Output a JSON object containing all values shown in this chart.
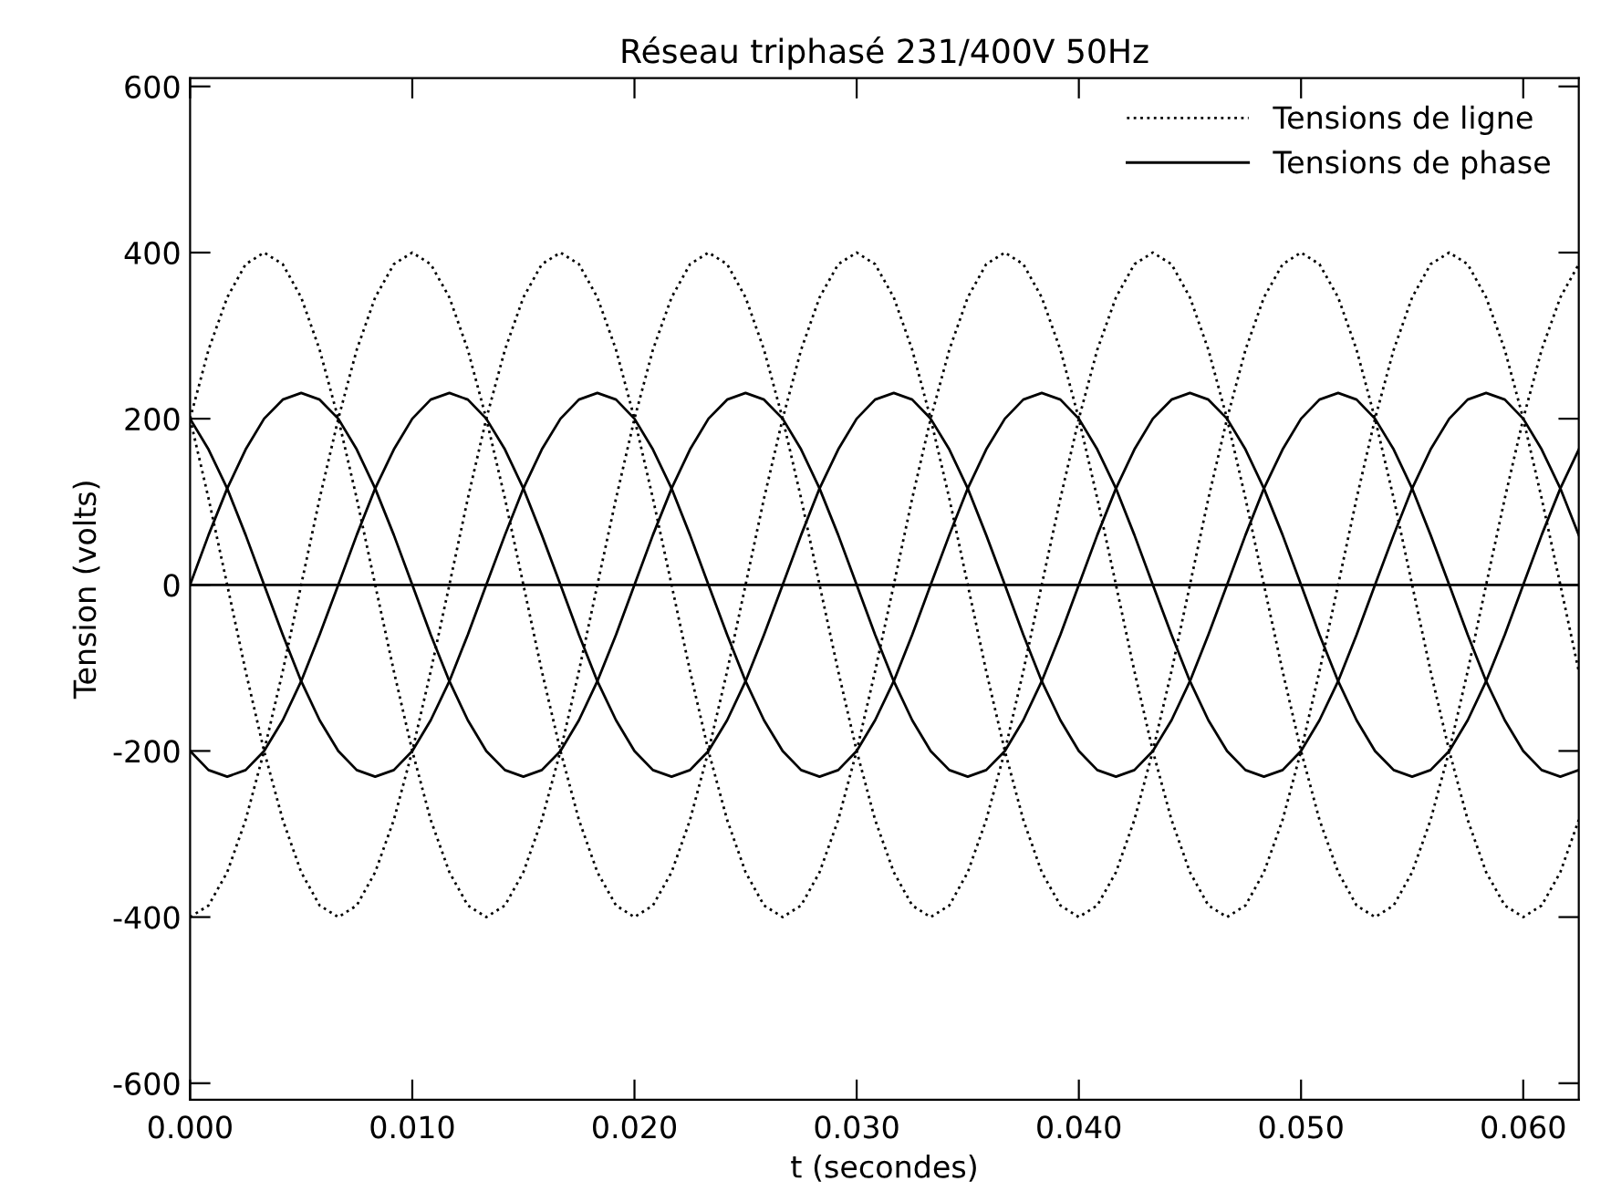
{
  "chart_data": {
    "type": "line",
    "title": "Réseau triphasé 231/400V 50Hz",
    "xlabel": "t (secondes)",
    "ylabel": "Tension (volts)",
    "x": [
      0,
      0.00083,
      0.00167,
      0.0025,
      0.00333,
      0.00417,
      0.005,
      0.00583,
      0.00667,
      0.0075,
      0.00833,
      0.00917,
      0.01,
      0.01083,
      0.01167,
      0.0125,
      0.01333,
      0.01417,
      0.015,
      0.01583,
      0.01667,
      0.0175,
      0.01833,
      0.01917,
      0.02,
      0.02083,
      0.02167,
      0.0225,
      0.02333,
      0.02417,
      0.025,
      0.02583,
      0.02667,
      0.0275,
      0.02833,
      0.02917,
      0.03,
      0.03083,
      0.03167,
      0.0325,
      0.03333,
      0.03417,
      0.035,
      0.03583,
      0.03667,
      0.0375,
      0.03833,
      0.03917,
      0.04,
      0.04083,
      0.04167,
      0.0425,
      0.04333,
      0.04417,
      0.045,
      0.04583,
      0.04667,
      0.0475,
      0.04833,
      0.04917,
      0.05,
      0.05083,
      0.05167,
      0.0525,
      0.05333,
      0.05417,
      0.055,
      0.05583,
      0.05667,
      0.0575,
      0.05833,
      0.05917,
      0.06,
      0.06083,
      0.06167,
      0.0625
    ],
    "series": [
      {
        "name": "Tensions de ligne",
        "color": "#000000",
        "line_style": "dotted",
        "values": [
          200,
          283,
          346,
          386,
          400,
          386,
          346,
          283,
          200,
          104,
          0,
          -104,
          -200,
          -283,
          -346,
          -386,
          -400,
          -386,
          -346,
          -283,
          -200,
          -104,
          0,
          104,
          200,
          283,
          346,
          386,
          400,
          386,
          346,
          283,
          200,
          104,
          0,
          -104,
          -200,
          -283,
          -346,
          -386,
          -400,
          -386,
          -346,
          -283,
          -200,
          -104,
          0,
          104,
          200,
          283,
          346,
          386,
          400,
          386,
          346,
          283,
          200,
          104,
          0,
          -104,
          -200,
          -283,
          -346,
          -386,
          -400,
          -386,
          -346,
          -283,
          -200,
          -104,
          0,
          104,
          200,
          283,
          346,
          386
        ]
      },
      {
        "color": "#000000",
        "line_style": "dotted",
        "values": [
          -400,
          -386,
          -346,
          -283,
          -200,
          -104,
          0,
          104,
          200,
          283,
          346,
          386,
          400,
          386,
          346,
          283,
          200,
          104,
          0,
          -104,
          -200,
          -283,
          -346,
          -386,
          -400,
          -386,
          -346,
          -283,
          -200,
          -104,
          0,
          104,
          200,
          283,
          346,
          386,
          400,
          386,
          346,
          283,
          200,
          104,
          0,
          -104,
          -200,
          -283,
          -346,
          -386,
          -400,
          -386,
          -346,
          -283,
          -200,
          -104,
          0,
          104,
          200,
          283,
          346,
          386,
          400,
          386,
          346,
          283,
          200,
          104,
          0,
          -104,
          -200,
          -283,
          -346,
          -386,
          -400,
          -386,
          -346,
          -283
        ]
      },
      {
        "color": "#000000",
        "line_style": "dotted",
        "values": [
          200,
          104,
          0,
          -104,
          -200,
          -283,
          -346,
          -386,
          -400,
          -386,
          -346,
          -283,
          -200,
          -104,
          0,
          104,
          200,
          283,
          346,
          386,
          400,
          386,
          346,
          283,
          200,
          104,
          0,
          -104,
          -200,
          -283,
          -346,
          -386,
          -400,
          -386,
          -346,
          -283,
          -200,
          -104,
          0,
          104,
          200,
          283,
          346,
          386,
          400,
          386,
          346,
          283,
          200,
          104,
          0,
          -104,
          -200,
          -283,
          -346,
          -386,
          -400,
          -386,
          -346,
          -283,
          -200,
          -104,
          0,
          104,
          200,
          283,
          346,
          386,
          400,
          386,
          346,
          283,
          200,
          104,
          0,
          -104
        ]
      },
      {
        "name": "Tensions de phase",
        "color": "#000000",
        "line_style": "solid",
        "values": [
          0,
          60,
          116,
          163,
          200,
          223,
          231,
          223,
          200,
          163,
          116,
          60,
          0,
          -60,
          -116,
          -163,
          -200,
          -223,
          -231,
          -223,
          -200,
          -163,
          -116,
          -60,
          0,
          60,
          116,
          163,
          200,
          223,
          231,
          223,
          200,
          163,
          116,
          60,
          0,
          -60,
          -116,
          -163,
          -200,
          -223,
          -231,
          -223,
          -200,
          -163,
          -116,
          -60,
          0,
          60,
          116,
          163,
          200,
          223,
          231,
          223,
          200,
          163,
          116,
          60,
          0,
          -60,
          -116,
          -163,
          -200,
          -223,
          -231,
          -223,
          -200,
          -163,
          -116,
          -60,
          0,
          60,
          116,
          163
        ]
      },
      {
        "color": "#000000",
        "line_style": "solid",
        "values": [
          200,
          163,
          116,
          60,
          0,
          -60,
          -116,
          -163,
          -200,
          -223,
          -231,
          -223,
          -200,
          -163,
          -116,
          -60,
          0,
          60,
          116,
          163,
          200,
          223,
          231,
          223,
          200,
          163,
          116,
          60,
          0,
          -60,
          -116,
          -163,
          -200,
          -223,
          -231,
          -223,
          -200,
          -163,
          -116,
          -60,
          0,
          60,
          116,
          163,
          200,
          223,
          231,
          223,
          200,
          163,
          116,
          60,
          0,
          -60,
          -116,
          -163,
          -200,
          -223,
          -231,
          -223,
          -200,
          -163,
          -116,
          -60,
          0,
          60,
          116,
          163,
          200,
          223,
          231,
          223,
          200,
          163,
          116,
          60
        ]
      },
      {
        "color": "#000000",
        "line_style": "solid",
        "values": [
          -200,
          -223,
          -231,
          -223,
          -200,
          -163,
          -116,
          -60,
          0,
          60,
          116,
          163,
          200,
          223,
          231,
          223,
          200,
          163,
          116,
          60,
          0,
          -60,
          -116,
          -163,
          -200,
          -223,
          -231,
          -223,
          -200,
          -163,
          -116,
          -60,
          0,
          60,
          116,
          163,
          200,
          223,
          231,
          223,
          200,
          163,
          116,
          60,
          0,
          -60,
          -116,
          -163,
          -200,
          -223,
          -231,
          -223,
          -200,
          -163,
          -116,
          -60,
          0,
          60,
          116,
          163,
          200,
          223,
          231,
          223,
          200,
          163,
          116,
          60,
          0,
          -60,
          -116,
          -163,
          -200,
          -223,
          -231,
          -223
        ]
      }
    ],
    "xlim": [
      0,
      0.0625
    ],
    "xticks": [
      {
        "value": 0,
        "label": "0.000"
      },
      {
        "value": 0.01,
        "label": "0.010"
      },
      {
        "value": 0.02,
        "label": "0.020"
      },
      {
        "value": 0.03,
        "label": "0.030"
      },
      {
        "value": 0.04,
        "label": "0.040"
      },
      {
        "value": 0.05,
        "label": "0.050"
      },
      {
        "value": 0.06,
        "label": "0.060"
      }
    ],
    "ylim": [
      -620,
      610
    ],
    "yticks": [
      -600,
      -400,
      -200,
      0,
      200,
      400,
      600
    ],
    "ref_lines": [
      {
        "axis": "y",
        "value": 0,
        "color": "#000000",
        "line_style": "solid"
      }
    ],
    "legend": "top right",
    "grid": false
  }
}
